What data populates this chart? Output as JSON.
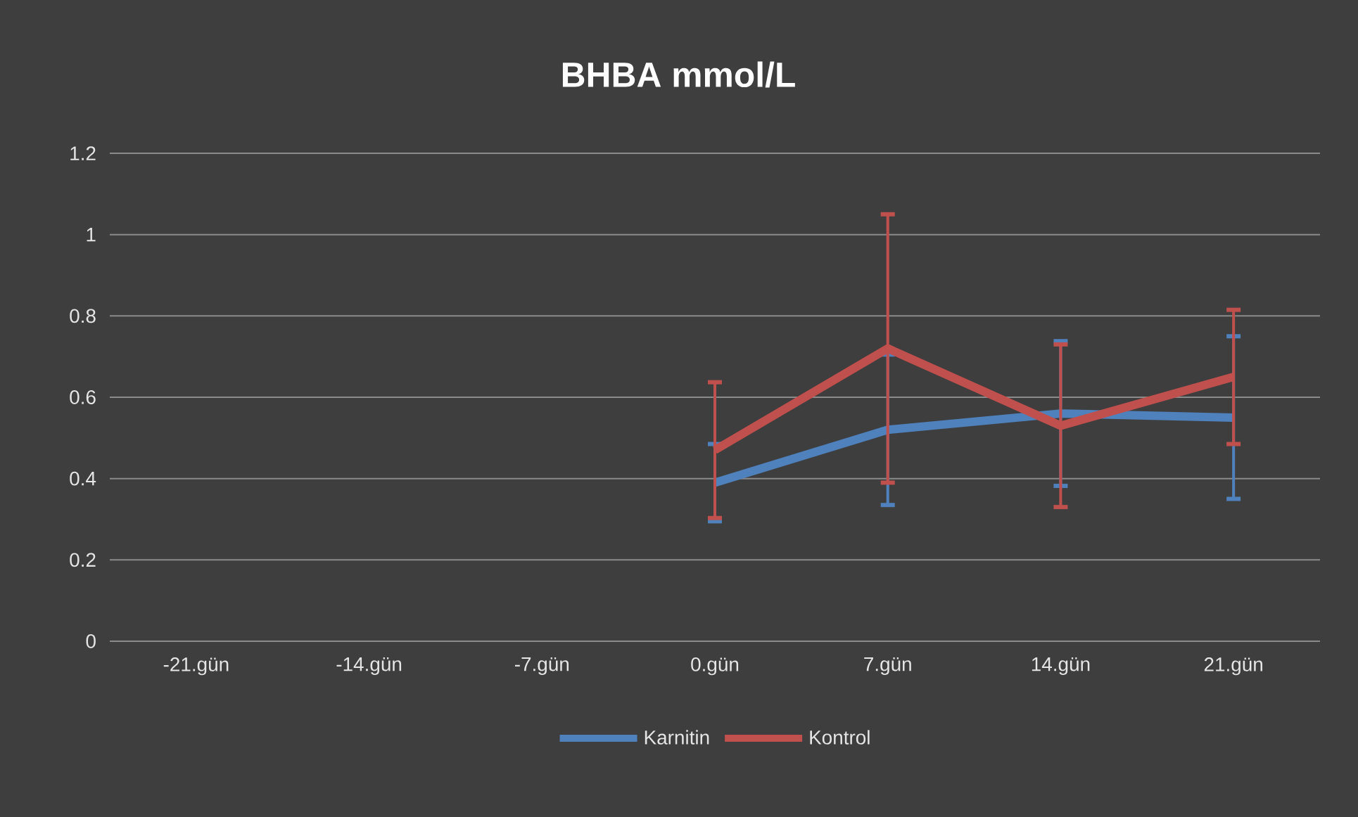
{
  "chart_data": {
    "type": "line",
    "title": "BHBA mmol/L",
    "categories": [
      "-21.gün",
      "-14.gün",
      "-7.gün",
      "0.gün",
      "7.gün",
      "14.gün",
      "21.gün"
    ],
    "series": [
      {
        "name": "Karnitin",
        "color": "#4f81bd",
        "values": [
          null,
          null,
          null,
          0.39,
          0.52,
          0.56,
          0.55
        ],
        "errors": [
          null,
          null,
          null,
          0.095,
          0.185,
          0.178,
          0.2
        ]
      },
      {
        "name": "Kontrol",
        "color": "#c0504d",
        "values": [
          null,
          null,
          null,
          0.47,
          0.72,
          0.53,
          0.65
        ],
        "errors": [
          null,
          null,
          null,
          0.167,
          0.33,
          0.2,
          0.165
        ]
      }
    ],
    "ylim": [
      0,
      1.2
    ],
    "yticks": [
      0,
      0.2,
      0.4,
      0.6,
      0.8,
      1,
      1.2
    ],
    "grid": "y",
    "legend": "bottom"
  }
}
